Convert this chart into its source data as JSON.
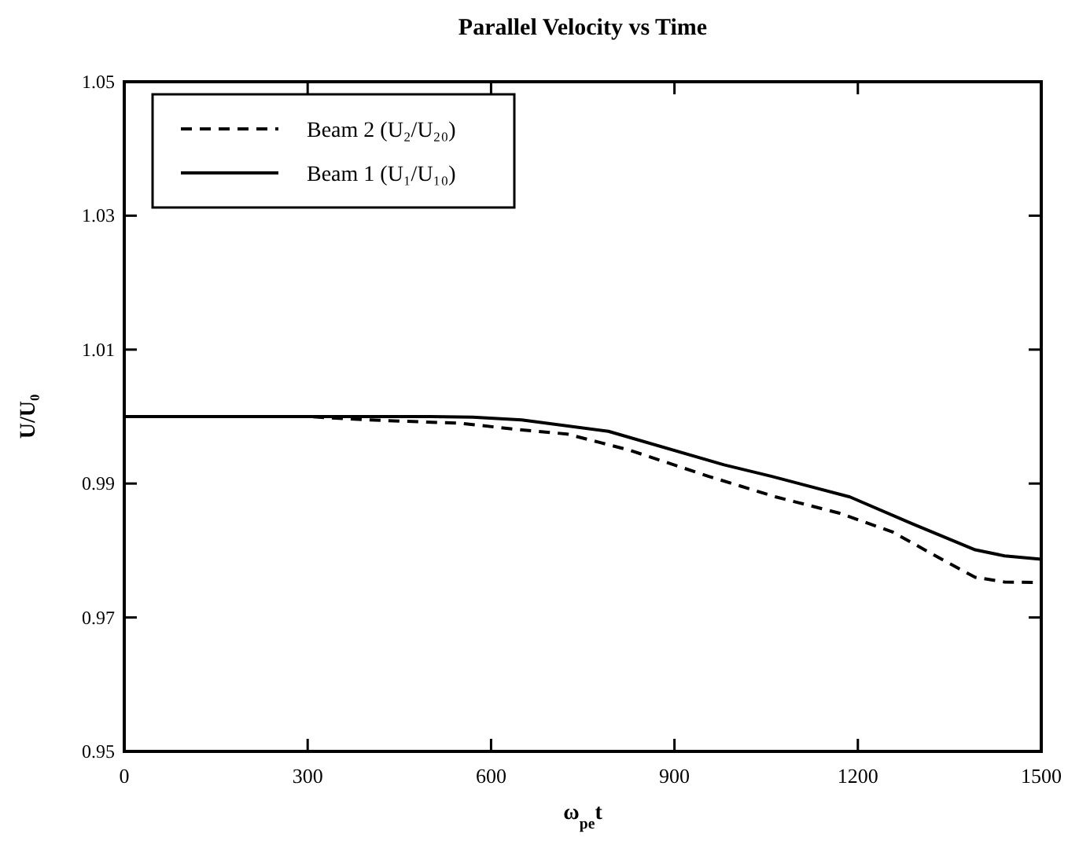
{
  "chart_data": {
    "type": "line",
    "title": "Parallel Velocity vs Time",
    "xlabel": "ω$_{pe}$t",
    "ylabel": "U/U₀",
    "xlim": [
      0,
      1500
    ],
    "xticks": [
      0,
      300,
      600,
      900,
      1200,
      1500
    ],
    "ylim": [
      0.95,
      1.05
    ],
    "yticks": [
      0.95,
      0.97,
      0.99,
      1.01,
      1.03,
      1.05
    ],
    "grid": false,
    "legend": "top left",
    "marker": "none",
    "series": [
      {
        "name": "Beam 2 (U₂/U₂₀)",
        "color": "#000000",
        "line_style": "dashed",
        "x": [
          0,
          300,
          400,
          550,
          650,
          724,
          826,
          955,
          1066,
          1169,
          1256,
          1341,
          1392,
          1440,
          1500
        ],
        "values": [
          1.0,
          1.0,
          0.9995,
          0.999,
          0.998,
          0.9974,
          0.995,
          0.9911,
          0.988,
          0.9856,
          0.9828,
          0.9785,
          0.976,
          0.9753,
          0.9752
        ]
      },
      {
        "name": "Beam 1 (U₁/U₁₀)",
        "color": "#000000",
        "line_style": "solid",
        "x": [
          0,
          500,
          570,
          650,
          792,
          981,
          1058,
          1187,
          1289,
          1392,
          1440,
          1500
        ],
        "values": [
          1.0,
          1.0,
          0.9999,
          0.9995,
          0.9978,
          0.9928,
          0.9911,
          0.988,
          0.984,
          0.9801,
          0.9792,
          0.9787
        ]
      }
    ]
  }
}
